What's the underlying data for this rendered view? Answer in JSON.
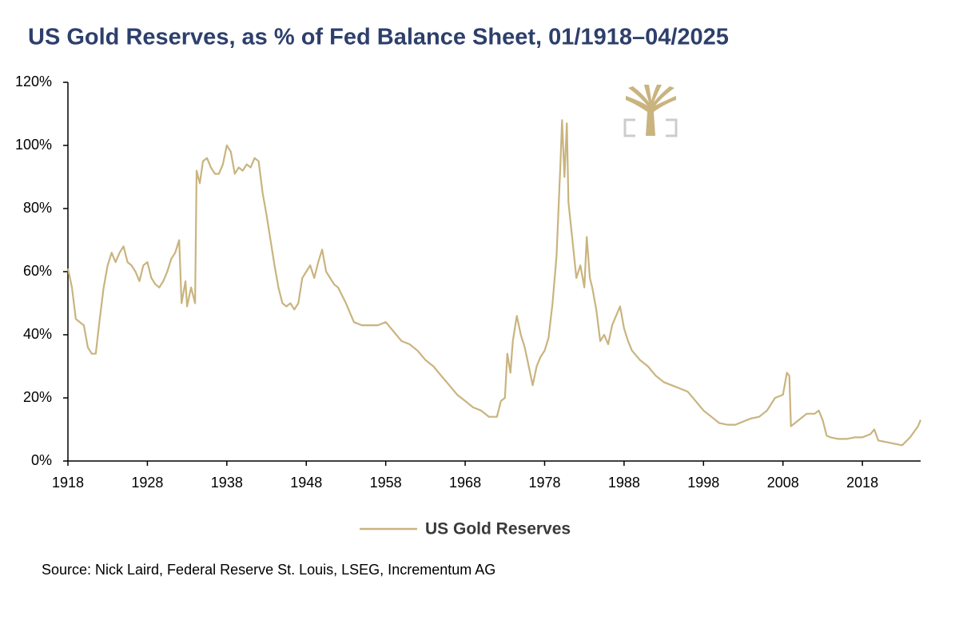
{
  "chart_data": {
    "type": "line",
    "title": "US Gold Reserves, as % of Fed Balance Sheet, 01/1918–04/2025",
    "source": "Source: Nick Laird, Federal Reserve St. Louis, LSEG, Incrementum AG",
    "x": [
      1918,
      1918.5,
      1919,
      1919.5,
      1920,
      1920.5,
      1921,
      1921.5,
      1922,
      1922.5,
      1923,
      1923.5,
      1924,
      1924.5,
      1925,
      1925.5,
      1926,
      1926.5,
      1927,
      1927.5,
      1928,
      1928.5,
      1929,
      1929.5,
      1930,
      1930.5,
      1931,
      1931.5,
      1932,
      1932.3,
      1932.8,
      1933,
      1933.5,
      1934,
      1934.2,
      1934.6,
      1935,
      1935.5,
      1936,
      1936.5,
      1937,
      1937.5,
      1938,
      1938.5,
      1939,
      1939.5,
      1940,
      1940.5,
      1941,
      1941.5,
      1942,
      1942.5,
      1943,
      1943.5,
      1944,
      1944.5,
      1945,
      1945.5,
      1946,
      1946.5,
      1947,
      1947.5,
      1948,
      1948.5,
      1949,
      1949.5,
      1950,
      1950.5,
      1951,
      1951.5,
      1952,
      1953,
      1953.5,
      1954,
      1955,
      1956,
      1957,
      1958,
      1959,
      1960,
      1961,
      1962,
      1963,
      1964,
      1965,
      1966,
      1967,
      1968,
      1969,
      1970,
      1971,
      1972,
      1972.5,
      1973,
      1973.3,
      1973.7,
      1974,
      1974.5,
      1975,
      1975.5,
      1976,
      1976.5,
      1977,
      1977.5,
      1978,
      1978.5,
      1979,
      1979.5,
      1980,
      1980.2,
      1980.5,
      1980.8,
      1981,
      1981.5,
      1982,
      1982.5,
      1983,
      1983.3,
      1983.7,
      1984,
      1984.5,
      1985,
      1985.5,
      1986,
      1986.5,
      1987,
      1987.5,
      1988,
      1988.5,
      1989,
      1990,
      1991,
      1992,
      1993,
      1994,
      1995,
      1996,
      1997,
      1998,
      1999,
      2000,
      2001,
      2002,
      2003,
      2004,
      2005,
      2006,
      2007,
      2008,
      2008.5,
      2008.8,
      2009,
      2010,
      2011,
      2012,
      2012.5,
      2013,
      2013.5,
      2014,
      2015,
      2016,
      2017,
      2018,
      2019,
      2019.5,
      2020,
      2021,
      2022,
      2023,
      2024,
      2025,
      2025.33
    ],
    "series": [
      {
        "name": "US Gold Reserves",
        "color": "#c9b47f",
        "values": [
          61,
          55,
          45,
          44,
          43,
          36,
          34,
          34,
          45,
          55,
          62,
          66,
          63,
          66,
          68,
          63,
          62,
          60,
          57,
          62,
          63,
          58,
          56,
          55,
          57,
          60,
          64,
          66,
          70,
          50,
          57,
          49,
          55,
          50,
          92,
          88,
          95,
          96,
          93,
          91,
          91,
          94,
          100,
          98,
          91,
          93,
          92,
          94,
          93,
          96,
          95,
          85,
          78,
          70,
          62,
          55,
          50,
          49,
          50,
          48,
          50,
          58,
          60,
          62,
          58,
          63,
          67,
          60,
          58,
          56,
          55,
          50,
          47,
          44,
          43,
          43,
          43,
          44,
          41,
          38,
          37,
          35,
          32,
          30,
          27,
          24,
          21,
          19,
          17,
          16,
          14,
          14,
          19,
          20,
          34,
          28,
          38,
          46,
          40,
          36,
          30,
          24,
          30,
          33,
          35,
          39,
          50,
          65,
          95,
          108,
          90,
          107,
          82,
          70,
          58,
          62,
          55,
          71,
          58,
          55,
          48,
          38,
          40,
          37,
          43,
          46,
          49,
          42,
          38,
          35,
          32,
          30,
          27,
          25,
          24,
          23,
          22,
          19,
          16,
          14,
          12,
          11.5,
          11.5,
          12.5,
          13.5,
          14,
          16,
          20,
          21,
          28,
          27,
          11,
          13,
          15,
          15,
          16,
          13,
          8,
          7.5,
          7,
          7,
          7.5,
          7.5,
          8.5,
          10,
          6.5,
          6,
          5.5,
          5,
          7.5,
          11,
          13
        ]
      }
    ],
    "xlim": [
      1918,
      2025.33
    ],
    "xticks": [
      1918,
      1928,
      1938,
      1948,
      1958,
      1968,
      1978,
      1988,
      1998,
      2008,
      2018
    ],
    "ylim": [
      0,
      120
    ],
    "yticks": [
      {
        "value": 0,
        "label": "0%"
      },
      {
        "value": 20,
        "label": "20%"
      },
      {
        "value": 40,
        "label": "40%"
      },
      {
        "value": 60,
        "label": "60%"
      },
      {
        "value": 80,
        "label": "80%"
      },
      {
        "value": 100,
        "label": "100%"
      },
      {
        "value": 120,
        "label": "120%"
      }
    ],
    "grid": false
  }
}
